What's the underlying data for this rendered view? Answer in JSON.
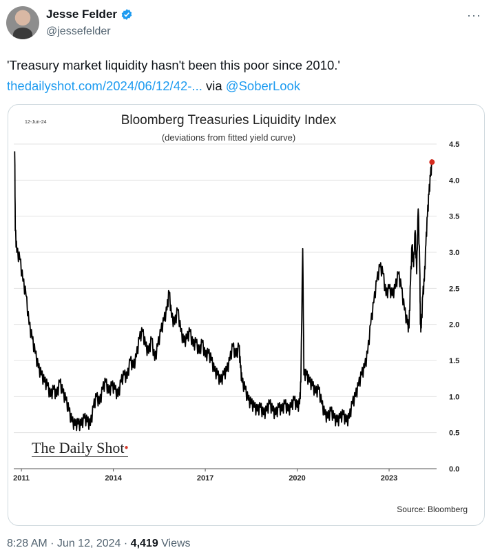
{
  "author": {
    "display_name": "Jesse Felder",
    "handle": "@jessefelder",
    "verified_icon": "verified-badge-icon",
    "more_icon": "more-options-icon",
    "more_label": "···"
  },
  "tweet": {
    "text": "'Treasury market liquidity hasn't been this poor since 2010.'",
    "link_text": "thedailyshot.com/2024/06/12/42-...",
    "via_text": " via ",
    "mention": "@SoberLook",
    "link_color": "#1d9bf0"
  },
  "chart_card": {
    "date_stamp": "12-Jun-24",
    "brand": "The Daily Shot",
    "source": "Source: Bloomberg"
  },
  "chart_data": {
    "type": "line",
    "title": "Bloomberg Treasuries Liquidity Index",
    "subtitle": "(deviations from fitted yield curve)",
    "xlabel": "",
    "ylabel": "",
    "xlim": [
      2010.75,
      2024.55
    ],
    "ylim": [
      0.0,
      4.5
    ],
    "x_ticks": [
      "2011",
      "2014",
      "2017",
      "2020",
      "2023"
    ],
    "y_ticks": [
      "0.0",
      "0.5",
      "1.0",
      "1.5",
      "2.0",
      "2.5",
      "3.0",
      "3.5",
      "4.0",
      "4.5"
    ],
    "y_axis_side": "right",
    "grid": "horizontal",
    "series": [
      {
        "color": "#000000",
        "points": [
          [
            2010.78,
            4.4
          ],
          [
            2010.8,
            3.3
          ],
          [
            2010.85,
            3.0
          ],
          [
            2010.95,
            2.9
          ],
          [
            2011.05,
            2.6
          ],
          [
            2011.15,
            2.4
          ],
          [
            2011.25,
            2.0
          ],
          [
            2011.35,
            1.8
          ],
          [
            2011.45,
            1.6
          ],
          [
            2011.55,
            1.4
          ],
          [
            2011.65,
            1.3
          ],
          [
            2011.75,
            1.2
          ],
          [
            2011.85,
            1.15
          ],
          [
            2011.95,
            1.0
          ],
          [
            2012.05,
            1.1
          ],
          [
            2012.15,
            1.0
          ],
          [
            2012.25,
            1.2
          ],
          [
            2012.35,
            1.05
          ],
          [
            2012.45,
            0.95
          ],
          [
            2012.55,
            0.8
          ],
          [
            2012.65,
            0.65
          ],
          [
            2012.75,
            0.6
          ],
          [
            2012.85,
            0.62
          ],
          [
            2012.95,
            0.6
          ],
          [
            2013.05,
            0.7
          ],
          [
            2013.15,
            0.65
          ],
          [
            2013.25,
            0.6
          ],
          [
            2013.35,
            0.85
          ],
          [
            2013.45,
            1.0
          ],
          [
            2013.55,
            0.9
          ],
          [
            2013.65,
            1.1
          ],
          [
            2013.75,
            1.2
          ],
          [
            2013.85,
            1.05
          ],
          [
            2013.95,
            1.15
          ],
          [
            2014.05,
            1.1
          ],
          [
            2014.15,
            1.0
          ],
          [
            2014.25,
            1.2
          ],
          [
            2014.35,
            1.3
          ],
          [
            2014.45,
            1.25
          ],
          [
            2014.55,
            1.5
          ],
          [
            2014.65,
            1.4
          ],
          [
            2014.75,
            1.55
          ],
          [
            2014.85,
            1.8
          ],
          [
            2014.95,
            1.9
          ],
          [
            2015.05,
            1.7
          ],
          [
            2015.15,
            1.6
          ],
          [
            2015.25,
            1.8
          ],
          [
            2015.35,
            1.5
          ],
          [
            2015.45,
            1.7
          ],
          [
            2015.55,
            1.9
          ],
          [
            2015.65,
            2.05
          ],
          [
            2015.75,
            2.2
          ],
          [
            2015.82,
            2.45
          ],
          [
            2015.9,
            2.1
          ],
          [
            2016.0,
            2.0
          ],
          [
            2016.1,
            2.2
          ],
          [
            2016.2,
            1.9
          ],
          [
            2016.3,
            1.75
          ],
          [
            2016.4,
            1.8
          ],
          [
            2016.5,
            1.9
          ],
          [
            2016.6,
            1.7
          ],
          [
            2016.7,
            1.75
          ],
          [
            2016.8,
            1.6
          ],
          [
            2016.9,
            1.75
          ],
          [
            2017.0,
            1.55
          ],
          [
            2017.1,
            1.6
          ],
          [
            2017.2,
            1.5
          ],
          [
            2017.3,
            1.35
          ],
          [
            2017.4,
            1.3
          ],
          [
            2017.5,
            1.2
          ],
          [
            2017.6,
            1.3
          ],
          [
            2017.7,
            1.35
          ],
          [
            2017.8,
            1.5
          ],
          [
            2017.9,
            1.7
          ],
          [
            2018.0,
            1.55
          ],
          [
            2018.1,
            1.7
          ],
          [
            2018.15,
            1.4
          ],
          [
            2018.2,
            1.2
          ],
          [
            2018.3,
            1.1
          ],
          [
            2018.4,
            0.95
          ],
          [
            2018.5,
            0.9
          ],
          [
            2018.6,
            0.85
          ],
          [
            2018.7,
            0.8
          ],
          [
            2018.8,
            0.85
          ],
          [
            2018.9,
            0.75
          ],
          [
            2019.0,
            0.8
          ],
          [
            2019.1,
            0.9
          ],
          [
            2019.2,
            0.8
          ],
          [
            2019.3,
            0.75
          ],
          [
            2019.4,
            0.85
          ],
          [
            2019.5,
            0.8
          ],
          [
            2019.6,
            0.9
          ],
          [
            2019.7,
            0.8
          ],
          [
            2019.8,
            0.85
          ],
          [
            2019.9,
            0.95
          ],
          [
            2020.0,
            0.85
          ],
          [
            2020.08,
            0.9
          ],
          [
            2020.12,
            1.2
          ],
          [
            2020.18,
            3.05
          ],
          [
            2020.22,
            1.3
          ],
          [
            2020.3,
            1.3
          ],
          [
            2020.4,
            1.2
          ],
          [
            2020.5,
            1.15
          ],
          [
            2020.6,
            1.05
          ],
          [
            2020.7,
            1.1
          ],
          [
            2020.8,
            0.9
          ],
          [
            2020.9,
            0.75
          ],
          [
            2021.0,
            0.7
          ],
          [
            2021.1,
            0.8
          ],
          [
            2021.2,
            0.7
          ],
          [
            2021.3,
            0.65
          ],
          [
            2021.4,
            0.7
          ],
          [
            2021.5,
            0.75
          ],
          [
            2021.6,
            0.65
          ],
          [
            2021.7,
            0.7
          ],
          [
            2021.8,
            0.9
          ],
          [
            2021.9,
            1.0
          ],
          [
            2022.0,
            1.15
          ],
          [
            2022.1,
            1.3
          ],
          [
            2022.2,
            1.4
          ],
          [
            2022.3,
            1.6
          ],
          [
            2022.4,
            2.0
          ],
          [
            2022.5,
            2.3
          ],
          [
            2022.6,
            2.6
          ],
          [
            2022.7,
            2.8
          ],
          [
            2022.8,
            2.7
          ],
          [
            2022.9,
            2.4
          ],
          [
            2023.0,
            2.5
          ],
          [
            2023.1,
            2.4
          ],
          [
            2023.2,
            2.5
          ],
          [
            2023.3,
            2.7
          ],
          [
            2023.4,
            2.5
          ],
          [
            2023.5,
            2.2
          ],
          [
            2023.6,
            2.0
          ],
          [
            2023.65,
            1.95
          ],
          [
            2023.7,
            2.6
          ],
          [
            2023.75,
            3.1
          ],
          [
            2023.8,
            2.8
          ],
          [
            2023.85,
            3.3
          ],
          [
            2023.9,
            2.7
          ],
          [
            2023.95,
            3.6
          ],
          [
            2024.0,
            2.8
          ],
          [
            2024.02,
            2.0
          ],
          [
            2024.05,
            1.95
          ],
          [
            2024.1,
            2.4
          ],
          [
            2024.15,
            2.6
          ],
          [
            2024.2,
            3.1
          ],
          [
            2024.25,
            3.5
          ],
          [
            2024.3,
            3.8
          ],
          [
            2024.35,
            4.05
          ],
          [
            2024.4,
            4.25
          ]
        ]
      }
    ],
    "last_point_marker_color": "#d62c1f"
  },
  "footer": {
    "time": "8:28 AM · Jun 12, 2024 · ",
    "views_count": "4,419",
    "views_label": " Views"
  }
}
